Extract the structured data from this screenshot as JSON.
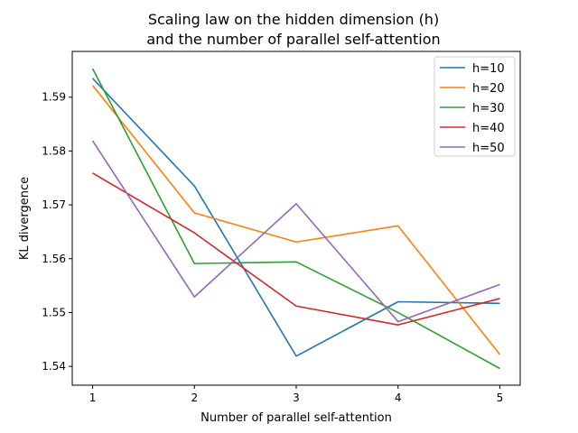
{
  "chart_data": {
    "type": "line",
    "title_line1": "Scaling law on the hidden dimension (h)",
    "title_line2": "and the number of parallel self-attention",
    "xlabel": "Number of parallel self-attention",
    "ylabel": "KL divergence",
    "x": [
      1,
      2,
      3,
      4,
      5
    ],
    "xlim": [
      0.8,
      5.2
    ],
    "ylim": [
      1.5365,
      1.5985
    ],
    "xticks": [
      1,
      2,
      3,
      4,
      5
    ],
    "yticks": [
      1.54,
      1.55,
      1.56,
      1.57,
      1.58,
      1.59
    ],
    "ytick_labels": [
      "1.54",
      "1.55",
      "1.56",
      "1.57",
      "1.58",
      "1.59"
    ],
    "grid": false,
    "legend_position": "top-right",
    "series": [
      {
        "name": "h=10",
        "color": "#1f77b4",
        "values": [
          1.5935,
          1.5735,
          1.5419,
          1.552,
          1.5517
        ]
      },
      {
        "name": "h=20",
        "color": "#ff7f0e",
        "values": [
          1.5922,
          1.5685,
          1.5631,
          1.5661,
          1.5422
        ]
      },
      {
        "name": "h=30",
        "color": "#2ca02c",
        "values": [
          1.5953,
          1.5591,
          1.5594,
          1.55,
          1.5396
        ]
      },
      {
        "name": "h=40",
        "color": "#d62728",
        "values": [
          1.5759,
          1.5648,
          1.5512,
          1.5477,
          1.5526
        ]
      },
      {
        "name": "h=50",
        "color": "#9467bd",
        "values": [
          1.5819,
          1.5529,
          1.5702,
          1.5483,
          1.5552
        ]
      }
    ]
  }
}
